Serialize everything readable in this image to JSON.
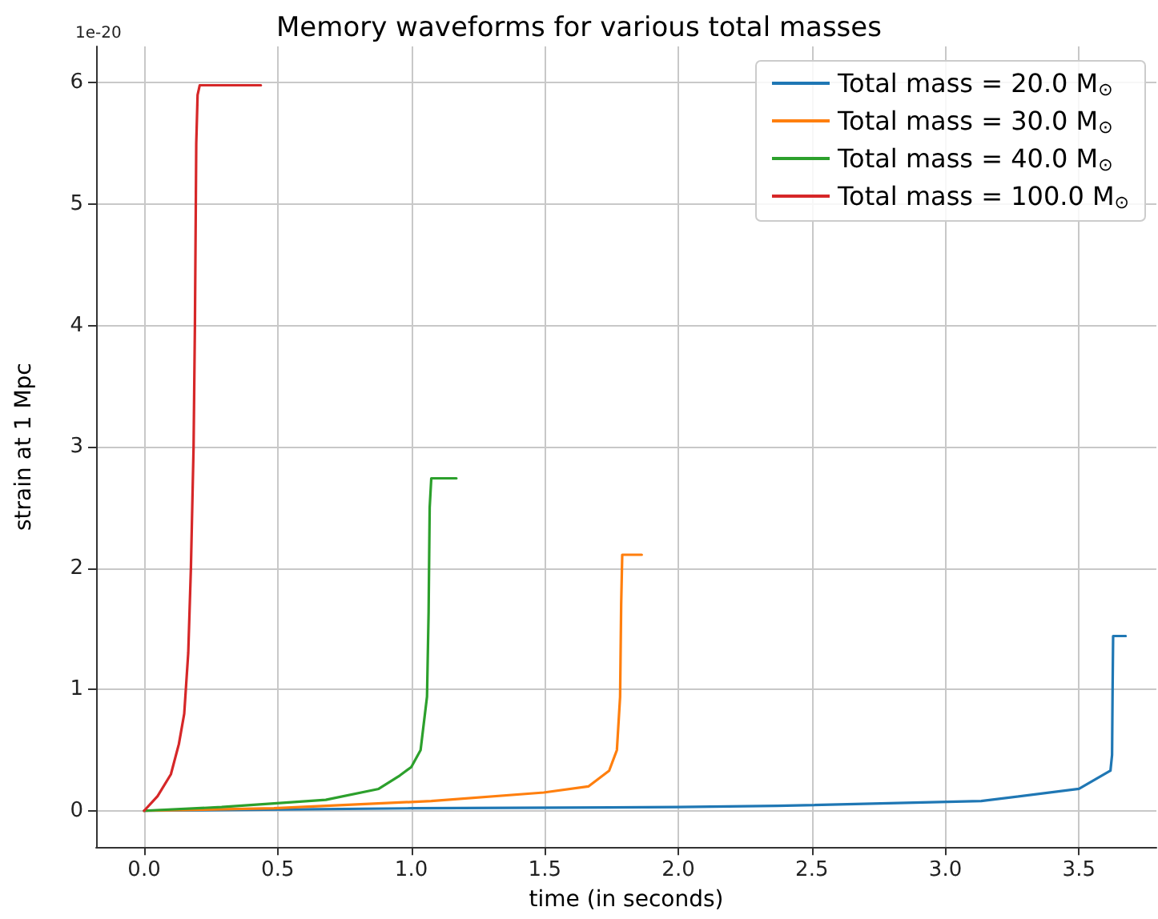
{
  "chart_data": {
    "type": "line",
    "title": "Memory waveforms for various total masses",
    "xlabel": "time (in seconds)",
    "ylabel": "strain at 1 Mpc",
    "annotations": [
      "1e-20"
    ],
    "xlim": [
      -0.18,
      3.79
    ],
    "ylim": [
      -0.3,
      6.3
    ],
    "xticks": [
      {
        "value": 0,
        "label": "0.0"
      },
      {
        "value": 0.5,
        "label": "0.5"
      },
      {
        "value": 1,
        "label": "1.0"
      },
      {
        "value": 1.5,
        "label": "1.5"
      },
      {
        "value": 2,
        "label": "2.0"
      },
      {
        "value": 2.5,
        "label": "2.5"
      },
      {
        "value": 3,
        "label": "3.0"
      },
      {
        "value": 3.5,
        "label": "3.5"
      }
    ],
    "yticks": [
      0,
      1,
      2,
      3,
      4,
      5,
      6
    ],
    "grid": true,
    "legend": "top right",
    "marker": "none",
    "line_style": "solid",
    "series": [
      {
        "name": "Total mass = 20.0 M$_{⊙}$",
        "color": "#1f77b4",
        "x": [
          0,
          1.0,
          2.0,
          2.37,
          3.134,
          3.5,
          3.618,
          3.624,
          3.626,
          3.628,
          3.675
        ],
        "values": [
          0,
          0.02,
          0.03,
          0.04,
          0.08,
          0.18,
          0.33,
          0.46,
          1.0,
          1.44,
          1.44
        ]
      },
      {
        "name": "Total mass = 30.0 M$_{⊙}$",
        "color": "#ff7f0e",
        "x": [
          0,
          0.486,
          1.075,
          1.496,
          1.663,
          1.741,
          1.77,
          1.782,
          1.786,
          1.79,
          1.863
        ],
        "values": [
          0,
          0.02,
          0.08,
          0.15,
          0.2,
          0.33,
          0.5,
          0.94,
          1.7,
          2.11,
          2.11
        ]
      },
      {
        "name": "Total mass = 40.0 M$_{⊙}$",
        "color": "#2ca02c",
        "x": [
          0,
          0.29,
          0.486,
          0.68,
          0.878,
          0.957,
          1.0,
          1.035,
          1.059,
          1.065,
          1.069,
          1.075,
          1.169
        ],
        "values": [
          0,
          0.03,
          0.06,
          0.09,
          0.18,
          0.29,
          0.36,
          0.5,
          0.94,
          1.64,
          2.5,
          2.74,
          2.74
        ]
      },
      {
        "name": "Total mass = 100.0 M$_{⊙}$",
        "color": "#d62728",
        "x": [
          0,
          0.05,
          0.1,
          0.13,
          0.15,
          0.165,
          0.175,
          0.185,
          0.19,
          0.195,
          0.2,
          0.208,
          0.437
        ],
        "values": [
          0,
          0.12,
          0.3,
          0.55,
          0.8,
          1.3,
          2.0,
          3.0,
          4.0,
          5.5,
          5.9,
          5.98,
          5.98
        ]
      }
    ]
  }
}
